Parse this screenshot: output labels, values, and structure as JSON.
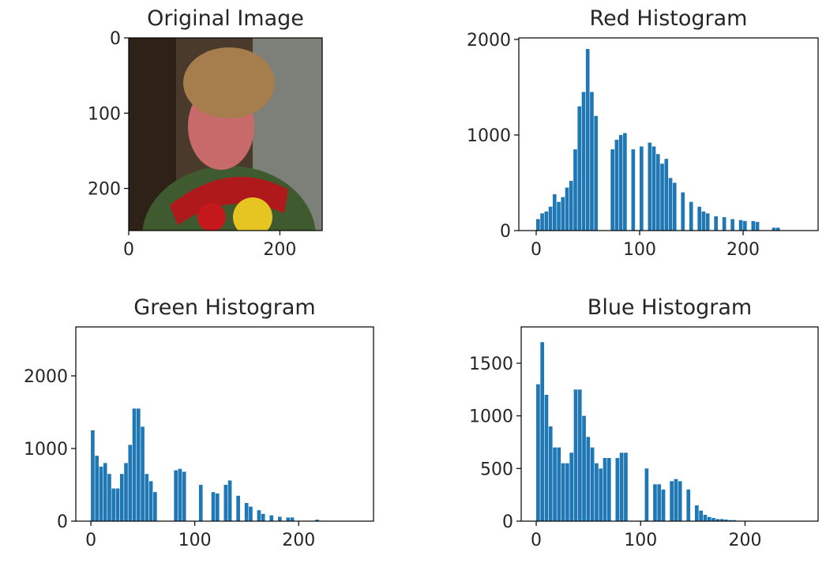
{
  "chart_data": [
    {
      "type": "image",
      "title": "Original Image",
      "xlim": [
        0,
        256
      ],
      "ylim": [
        256,
        0
      ],
      "xticks": [
        0,
        200
      ],
      "yticks": [
        0,
        100,
        200
      ]
    },
    {
      "type": "histogram",
      "title": "Red Histogram",
      "color": "#1f77b4",
      "xlim": [
        -16.8,
        272.5
      ],
      "ylim": [
        0,
        2016
      ],
      "xticks": [
        0,
        100,
        200
      ],
      "yticks": [
        0,
        1000,
        2000
      ],
      "bins": [
        0,
        4,
        8,
        12,
        16,
        20,
        24,
        28,
        32,
        36,
        40,
        44,
        48,
        52,
        56,
        60,
        64,
        68,
        72,
        76,
        80,
        84,
        88,
        92,
        96,
        100,
        104,
        108,
        112,
        116,
        120,
        124,
        128,
        132,
        136,
        140,
        144,
        148,
        152,
        156,
        160,
        164,
        168,
        172,
        176,
        180,
        184,
        188,
        192,
        196,
        200,
        204,
        208,
        212,
        216,
        220,
        224,
        228,
        232,
        236,
        240,
        244,
        248,
        252,
        256
      ],
      "counts": [
        120,
        180,
        200,
        250,
        380,
        300,
        350,
        450,
        520,
        850,
        1300,
        1450,
        1900,
        1450,
        1200,
        0,
        0,
        0,
        850,
        950,
        1000,
        1020,
        0,
        850,
        0,
        880,
        0,
        920,
        880,
        800,
        700,
        750,
        550,
        500,
        0,
        400,
        0,
        300,
        0,
        250,
        200,
        180,
        0,
        150,
        0,
        140,
        0,
        120,
        0,
        110,
        100,
        0,
        100,
        90,
        0,
        0,
        0,
        30,
        30,
        0,
        0,
        0,
        0,
        0
      ]
    },
    {
      "type": "histogram",
      "title": "Green Histogram",
      "color": "#1f77b4",
      "xlim": [
        -14.5,
        272
      ],
      "ylim": [
        0,
        2674
      ],
      "xticks": [
        0,
        100,
        200
      ],
      "yticks": [
        0,
        1000,
        2000
      ],
      "bins": [
        0,
        4,
        8,
        12,
        16,
        20,
        24,
        28,
        32,
        36,
        40,
        44,
        48,
        52,
        56,
        60,
        64,
        68,
        72,
        76,
        80,
        84,
        88,
        92,
        96,
        100,
        104,
        108,
        112,
        116,
        120,
        124,
        128,
        132,
        136,
        140,
        144,
        148,
        152,
        156,
        160,
        164,
        168,
        172,
        176,
        180,
        184,
        188,
        192,
        196,
        200,
        204,
        208,
        212,
        216,
        220,
        224,
        228,
        232,
        236,
        240,
        244,
        248,
        252,
        256
      ],
      "counts": [
        1250,
        900,
        750,
        800,
        650,
        450,
        450,
        650,
        800,
        1050,
        1550,
        1550,
        1300,
        650,
        550,
        400,
        0,
        0,
        0,
        0,
        700,
        720,
        680,
        0,
        0,
        0,
        500,
        0,
        0,
        400,
        380,
        0,
        500,
        560,
        0,
        350,
        0,
        250,
        200,
        0,
        150,
        100,
        0,
        80,
        0,
        60,
        0,
        50,
        50,
        0,
        0,
        0,
        0,
        0,
        20,
        0,
        0,
        0,
        0,
        0,
        0,
        0,
        0,
        0
      ]
    },
    {
      "type": "histogram",
      "title": "Blue Histogram",
      "color": "#1f77b4",
      "xlim": [
        -14.4,
        270
      ],
      "ylim": [
        0,
        1845
      ],
      "xticks": [
        0,
        100,
        200
      ],
      "yticks": [
        0,
        500,
        1000,
        1500
      ],
      "bins": [
        0,
        4,
        8,
        12,
        16,
        20,
        24,
        28,
        32,
        36,
        40,
        44,
        48,
        52,
        56,
        60,
        64,
        68,
        72,
        76,
        80,
        84,
        88,
        92,
        96,
        100,
        104,
        108,
        112,
        116,
        120,
        124,
        128,
        132,
        136,
        140,
        144,
        148,
        152,
        156,
        160,
        164,
        168,
        172,
        176,
        180,
        184,
        188,
        192,
        196,
        200,
        204,
        208,
        212,
        216,
        220,
        224,
        228,
        232,
        236,
        240,
        244,
        248,
        252,
        256
      ],
      "counts": [
        1300,
        1700,
        1200,
        900,
        700,
        700,
        550,
        550,
        650,
        1250,
        1250,
        1000,
        800,
        700,
        550,
        500,
        600,
        600,
        0,
        600,
        650,
        650,
        0,
        0,
        0,
        0,
        500,
        0,
        350,
        350,
        300,
        0,
        380,
        400,
        380,
        0,
        300,
        0,
        150,
        100,
        60,
        40,
        30,
        20,
        20,
        15,
        10,
        10,
        0,
        0,
        0,
        0,
        0,
        0,
        0,
        0,
        0,
        0,
        0,
        0,
        0,
        0,
        0,
        0
      ]
    }
  ]
}
